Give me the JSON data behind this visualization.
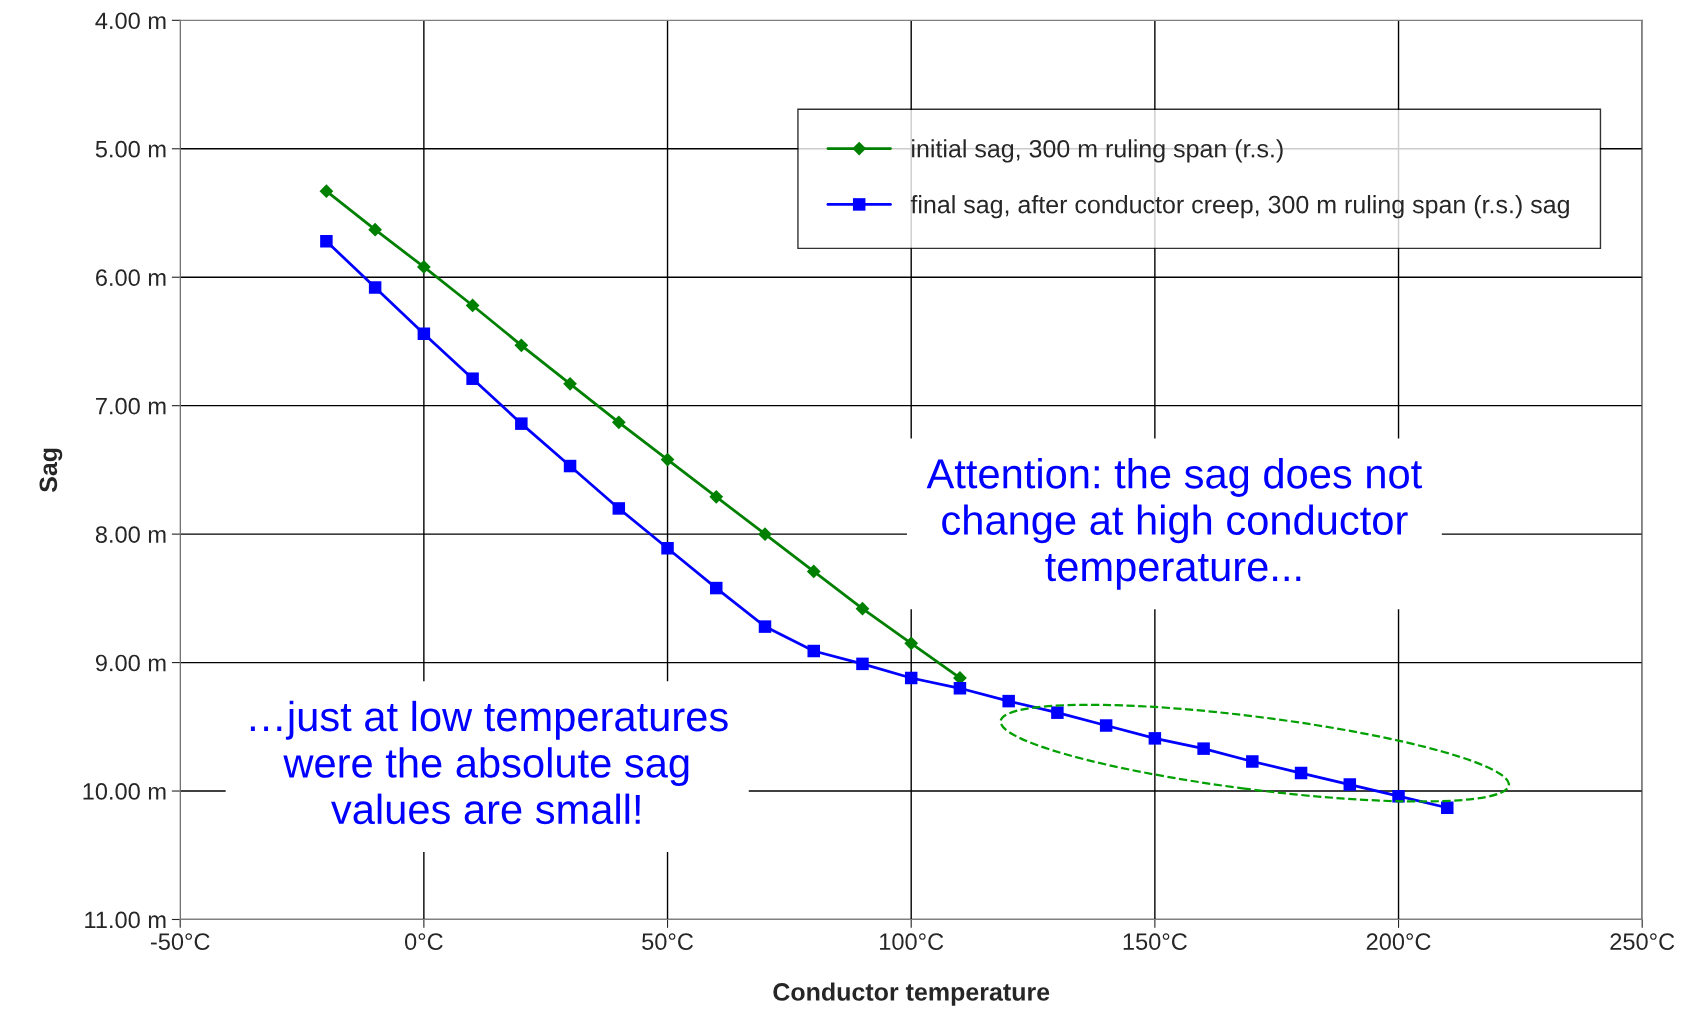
{
  "chart_data": {
    "type": "line",
    "xlabel": "Conductor temperature",
    "ylabel": "Sag",
    "xlim": [
      -50,
      250
    ],
    "ylim": [
      11,
      4
    ],
    "xticks": [
      {
        "value": -50,
        "label": "-50°C"
      },
      {
        "value": 0,
        "label": "0°C"
      },
      {
        "value": 50,
        "label": "50°C"
      },
      {
        "value": 100,
        "label": "100°C"
      },
      {
        "value": 150,
        "label": "150°C"
      },
      {
        "value": 200,
        "label": "200°C"
      },
      {
        "value": 250,
        "label": "250°C"
      }
    ],
    "yticks": [
      {
        "value": 4,
        "label": "4.00 m"
      },
      {
        "value": 5,
        "label": "5.00 m"
      },
      {
        "value": 6,
        "label": "6.00 m"
      },
      {
        "value": 7,
        "label": "7.00 m"
      },
      {
        "value": 8,
        "label": "8.00 m"
      },
      {
        "value": 9,
        "label": "9.00 m"
      },
      {
        "value": 10,
        "label": "10.00 m"
      },
      {
        "value": 11,
        "label": "11.00 m"
      }
    ],
    "grid": true,
    "legend": "top right",
    "series": [
      {
        "name": "initial sag, 300 m ruling span (r.s.)",
        "color": "#008000",
        "marker": "diamond",
        "x": [
          -20,
          -10,
          0,
          10,
          20,
          30,
          40,
          50,
          60,
          70,
          80,
          90,
          100,
          110
        ],
        "values": [
          5.33,
          5.63,
          5.92,
          6.22,
          6.53,
          6.83,
          7.13,
          7.42,
          7.71,
          8.0,
          8.29,
          8.58,
          8.85,
          9.12
        ]
      },
      {
        "name": "final sag, after conductor creep, 300 m ruling span (r.s.) sag",
        "color": "#0000ff",
        "marker": "square",
        "x": [
          -20,
          -10,
          0,
          10,
          20,
          30,
          40,
          50,
          60,
          70,
          80,
          90,
          100,
          110,
          120,
          130,
          140,
          150,
          160,
          170,
          180,
          190,
          200,
          210
        ],
        "values": [
          5.72,
          6.08,
          6.44,
          6.79,
          7.14,
          7.47,
          7.8,
          8.11,
          8.42,
          8.72,
          8.91,
          9.01,
          9.12,
          9.2,
          9.3,
          9.39,
          9.49,
          9.59,
          9.67,
          9.77,
          9.86,
          9.95,
          10.04,
          10.13
        ]
      }
    ],
    "annotations": [
      "Attention: the sag does not\nchange at high conductor\ntemperature...",
      "…just at low temperatures\nwere the absolute sag\nvalues are small!"
    ]
  }
}
